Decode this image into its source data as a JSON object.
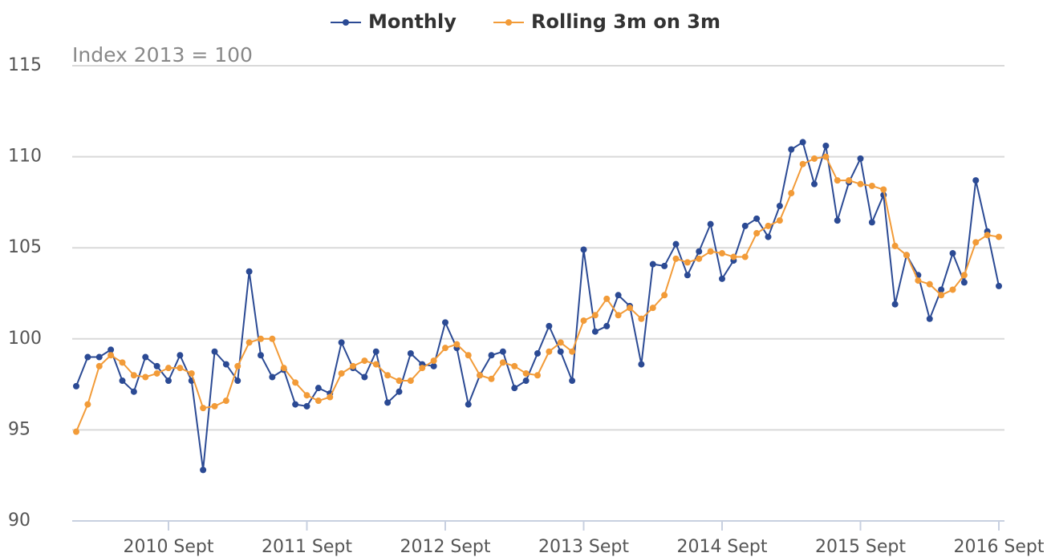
{
  "chart_data": {
    "type": "line",
    "annotation": "Index 2013 = 100",
    "categories": [
      null,
      null,
      null,
      null,
      null,
      null,
      null,
      null,
      "2010 Sept",
      null,
      null,
      null,
      null,
      null,
      null,
      null,
      null,
      null,
      null,
      null,
      "2011 Sept",
      null,
      null,
      null,
      null,
      null,
      null,
      null,
      null,
      null,
      null,
      null,
      "2012 Sept",
      null,
      null,
      null,
      null,
      null,
      null,
      null,
      null,
      null,
      null,
      null,
      "2013 Sept",
      null,
      null,
      null,
      null,
      null,
      null,
      null,
      null,
      null,
      null,
      null,
      "2014 Sept",
      null,
      null,
      null,
      null,
      null,
      null,
      null,
      null,
      null,
      null,
      null,
      "2015 Sept",
      null,
      null,
      null,
      null,
      null,
      null,
      null,
      null,
      null,
      null,
      null,
      "2016 Sept"
    ],
    "series": [
      {
        "name": "Monthly",
        "color": "#2b4a94",
        "values": [
          97.4,
          99.0,
          99.0,
          99.4,
          97.7,
          97.1,
          99.0,
          98.5,
          97.7,
          99.1,
          97.7,
          92.8,
          99.3,
          98.6,
          97.7,
          103.7,
          99.1,
          97.9,
          98.3,
          96.4,
          96.3,
          97.3,
          97.0,
          99.8,
          98.4,
          97.9,
          99.3,
          96.5,
          97.1,
          99.2,
          98.6,
          98.5,
          100.9,
          99.5,
          96.4,
          98.0,
          99.1,
          99.3,
          97.3,
          97.7,
          99.2,
          100.7,
          99.3,
          97.7,
          104.9,
          100.4,
          100.7,
          102.4,
          101.8,
          98.6,
          104.1,
          104.0,
          105.2,
          103.5,
          104.8,
          106.3,
          103.3,
          104.3,
          106.2,
          106.6,
          105.6,
          107.3,
          110.4,
          110.8,
          108.5,
          110.6,
          106.5,
          108.6,
          109.9,
          106.4,
          107.9,
          101.9,
          104.6,
          103.5,
          101.1,
          102.7,
          104.7,
          103.1,
          108.7,
          105.9,
          102.9
        ]
      },
      {
        "name": "Rolling 3m on 3m",
        "color": "#f29b38",
        "values": [
          94.9,
          96.4,
          98.5,
          99.1,
          98.7,
          98.0,
          97.9,
          98.1,
          98.4,
          98.4,
          98.1,
          96.2,
          96.3,
          96.6,
          98.5,
          99.8,
          100.0,
          100.0,
          98.4,
          97.6,
          96.9,
          96.6,
          96.8,
          98.1,
          98.5,
          98.8,
          98.6,
          98.0,
          97.7,
          97.7,
          98.4,
          98.8,
          99.5,
          99.7,
          99.1,
          98.0,
          97.8,
          98.7,
          98.5,
          98.1,
          98.0,
          99.3,
          99.8,
          99.3,
          101.0,
          101.3,
          102.2,
          101.3,
          101.7,
          101.1,
          101.7,
          102.4,
          104.4,
          104.2,
          104.4,
          104.8,
          104.7,
          104.5,
          104.5,
          105.8,
          106.2,
          106.5,
          108.0,
          109.6,
          109.9,
          110.0,
          108.7,
          108.7,
          108.5,
          108.4,
          108.2,
          105.1,
          104.6,
          103.2,
          103.0,
          102.4,
          102.7,
          103.5,
          105.3,
          105.7,
          105.6
        ]
      }
    ],
    "ylim": [
      90,
      115
    ],
    "yticks": [
      90,
      95,
      100,
      105,
      110,
      115
    ],
    "grid": true
  }
}
